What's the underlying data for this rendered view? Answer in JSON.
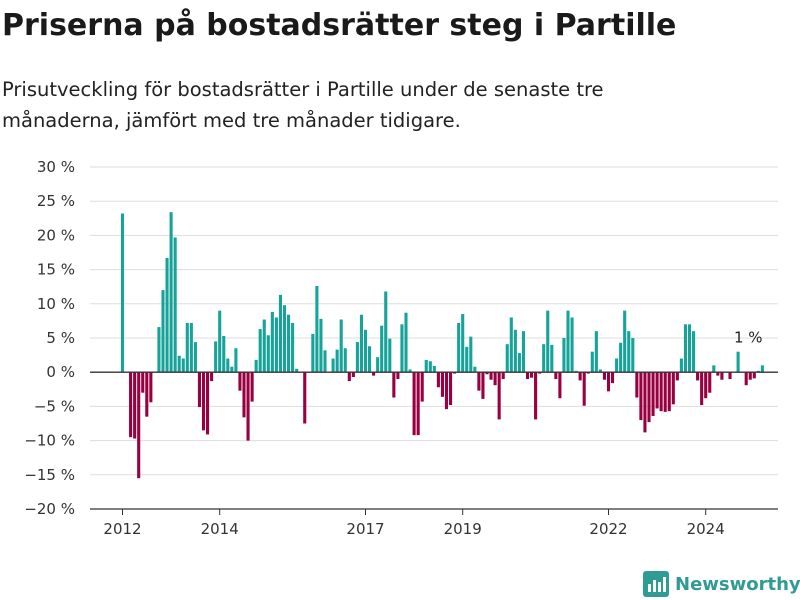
{
  "title": "Priserna på bostadsrätter steg i Partille",
  "subtitle": "Prisutveckling för bostadsrätter i Partille under de senaste tre månaderna, jämfört med tre månader tidigare.",
  "brand": "Newsworthy",
  "colors": {
    "positive": "#17a39a",
    "negative": "#990042",
    "grid": "#dddddd",
    "axis": "#333333",
    "brand": "#2f9c93"
  },
  "chart_data": {
    "type": "bar",
    "title": "Priserna på bostadsrätter steg i Partille",
    "xlabel": "",
    "ylabel": "",
    "ylim": [
      -20,
      30
    ],
    "yticks": [
      -20,
      -15,
      -10,
      -5,
      0,
      5,
      10,
      15,
      20,
      25,
      30
    ],
    "ytick_labels": [
      "−20 %",
      "−15 %",
      "−10 %",
      "−5 %",
      "0 %",
      "5 %",
      "10 %",
      "15 %",
      "20 %",
      "25 %",
      "30 %"
    ],
    "xticks": [
      {
        "label": "2012",
        "index": 0
      },
      {
        "label": "2014",
        "index": 24
      },
      {
        "label": "2017",
        "index": 60
      },
      {
        "label": "2019",
        "index": 84
      },
      {
        "label": "2022",
        "index": 120
      },
      {
        "label": "2024",
        "index": 144
      }
    ],
    "grid": true,
    "annotation": {
      "text": "1 %",
      "index": 155,
      "value": 1
    },
    "frequency": "monthly",
    "start": "2012-01",
    "values": [
      23.2,
      0,
      -9.5,
      -9.7,
      -15.5,
      -3,
      -6.5,
      -4.4,
      0.1,
      6.6,
      12,
      16.7,
      23.4,
      19.7,
      2.4,
      2,
      7.2,
      7.2,
      4.4,
      -5.1,
      -8.5,
      -9.1,
      -1.3,
      4.5,
      9,
      5.3,
      2,
      0.8,
      3.5,
      -2.7,
      -6.6,
      -10,
      -4.3,
      1.8,
      6.3,
      7.7,
      5.4,
      8.8,
      8,
      11.3,
      9.8,
      8.4,
      7.2,
      0.5,
      0,
      -7.5,
      0,
      5.6,
      12.6,
      7.8,
      3.2,
      0,
      2,
      3.3,
      7.7,
      3.5,
      -1.3,
      -0.7,
      4.4,
      8.4,
      6.2,
      3.8,
      -0.5,
      2.2,
      6.8,
      11.8,
      4.9,
      -3.7,
      -1,
      7,
      8.7,
      0.4,
      -9.2,
      -9.2,
      -4.3,
      1.8,
      1.6,
      0.9,
      -2.2,
      -3.6,
      -5.4,
      -4.8,
      -0.2,
      7.2,
      8.5,
      3.7,
      5.2,
      0.8,
      -2.7,
      -3.9,
      -0.3,
      -1.1,
      -1.9,
      -6.9,
      -1,
      4.1,
      8,
      6.2,
      2.8,
      6,
      -1,
      -0.8,
      -6.9,
      -0.2,
      4.1,
      9,
      4,
      -1,
      -3.8,
      5,
      9,
      8,
      0.2,
      -1.2,
      -4.9,
      -0.2,
      3,
      6,
      0.4,
      -1.1,
      -2.8,
      -1.6,
      2,
      4.3,
      9,
      6,
      5,
      -3.7,
      -7,
      -8.8,
      -7.3,
      -6.4,
      -5.3,
      -5.7,
      -5.8,
      -5.7,
      -4.7,
      -1.2,
      2,
      7,
      7,
      6,
      -1.2,
      -4.8,
      -3.8,
      -3,
      1,
      -0.5,
      -1.1,
      0.1,
      -1,
      0,
      3,
      0.1,
      -1.9,
      -1.1,
      -0.9,
      0.2,
      1
    ]
  }
}
